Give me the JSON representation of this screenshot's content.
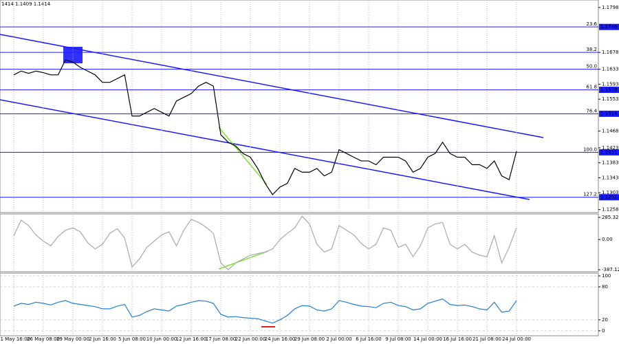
{
  "chart_data": [
    {
      "type": "line",
      "title": "1414 1.1409 1.1414",
      "color": "#000000",
      "grid": true,
      "categories": [
        "21 May 16:00",
        null,
        null,
        null,
        "26 May 08:00",
        null,
        null,
        null,
        "29 May 00:00",
        null,
        null,
        null,
        "2 Jun 16:00",
        null,
        null,
        null,
        "5 Jun 08:00",
        null,
        null,
        null,
        "10 Jun 00:00",
        null,
        null,
        null,
        "12 Jun 16:00",
        null,
        null,
        null,
        "17 Jun 08:00",
        null,
        null,
        null,
        "22 Jun 00:00",
        null,
        null,
        null,
        "24 Jun 16:00",
        null,
        null,
        null,
        "29 Jun 08:00",
        null,
        null,
        null,
        "2 Jul 00:00",
        null,
        null,
        null,
        "6 Jul 16:00",
        null,
        null,
        null,
        "9 Jul 08:00",
        null,
        null,
        null,
        "14 Jul 00:00",
        null,
        null,
        null,
        "16 Jul 16:00",
        null,
        null,
        null,
        "21 Jul 08:00",
        null,
        null,
        null,
        "24 Jul 00:00",
        null,
        null,
        null
      ],
      "values": [
        1.1618,
        1.1628,
        1.1622,
        1.1628,
        1.1624,
        1.1618,
        1.1618,
        1.1658,
        1.1652,
        1.1638,
        1.1628,
        1.1618,
        1.1598,
        1.1598,
        1.1608,
        1.1618,
        1.1508,
        1.1508,
        1.1518,
        1.1528,
        1.1518,
        1.1508,
        1.1548,
        1.1558,
        1.1568,
        1.1588,
        1.1598,
        1.1588,
        1.1458,
        1.1438,
        1.1428,
        1.1408,
        1.1398,
        1.1368,
        1.1328,
        1.1298,
        1.1318,
        1.1328,
        1.1368,
        1.1358,
        1.1358,
        1.1368,
        1.1348,
        1.1358,
        1.1418,
        1.1408,
        1.1398,
        1.1388,
        1.1388,
        1.1378,
        1.1398,
        1.1398,
        1.1398,
        1.1388,
        1.1358,
        1.1368,
        1.1398,
        1.1408,
        1.1438,
        1.1408,
        1.1398,
        1.1398,
        1.1378,
        1.1378,
        1.1368,
        1.1388,
        1.1348,
        1.1338,
        1.1414,
        null,
        null,
        null
      ],
      "ylim": [
        1.125,
        1.1818
      ],
      "yticks": [
        1.1798,
        1.1678,
        1.1633,
        1.1593,
        1.1553,
        1.1468,
        1.1423,
        1.1383,
        1.1343,
        1.1303,
        1.1258
      ],
      "level_color": "#1a1aff",
      "levels": [
        {
          "ratio": "23.6",
          "value": 1.1746,
          "highlight": true
        },
        {
          "ratio": "38.2",
          "value": 1.1678,
          "highlight": false
        },
        {
          "ratio": "50.0",
          "value": 1.1633,
          "highlight": false
        },
        {
          "ratio": "61.8",
          "value": 1.1578,
          "highlight": true
        },
        {
          "ratio": "76.4",
          "value": 1.1514,
          "highlight": true
        },
        {
          "ratio": "100.0",
          "value": 1.1411,
          "highlight": true
        },
        {
          "ratio": "127.2",
          "value": 1.1291,
          "highlight": true
        }
      ]
    },
    {
      "type": "line",
      "color": "#a9a9a9",
      "values": [
        50,
        250,
        180,
        60,
        -20,
        -80,
        40,
        120,
        150,
        100,
        -40,
        -120,
        -60,
        80,
        140,
        20,
        -350,
        -250,
        -100,
        -20,
        60,
        100,
        -80,
        120,
        260,
        220,
        160,
        80,
        -300,
        -387,
        -300,
        -250,
        -200,
        -180,
        -160,
        -120,
        0,
        80,
        150,
        300,
        200,
        -60,
        -160,
        -120,
        180,
        120,
        60,
        -50,
        -120,
        -60,
        150,
        120,
        -100,
        -60,
        -220,
        -80,
        150,
        200,
        220,
        -60,
        -120,
        -60,
        -160,
        -200,
        -220,
        50,
        -300,
        -100,
        150,
        null,
        null,
        null
      ],
      "ylim": [
        -413,
        329
      ],
      "yticks": [
        {
          "value": 285.322,
          "label": "285.322"
        },
        {
          "value": 0,
          "label": "0.00"
        },
        {
          "value": -387.129,
          "label": "-387.129"
        }
      ]
    },
    {
      "type": "line",
      "color": "#1e7fd8",
      "values": [
        45,
        50,
        48,
        52,
        50,
        47,
        52,
        55,
        50,
        48,
        46,
        44,
        40,
        40,
        45,
        48,
        25,
        28,
        35,
        40,
        38,
        36,
        45,
        48,
        52,
        55,
        54,
        50,
        30,
        25,
        26,
        24,
        23,
        22,
        18,
        14,
        20,
        28,
        40,
        46,
        45,
        38,
        36,
        40,
        55,
        52,
        48,
        45,
        44,
        42,
        50,
        52,
        46,
        44,
        38,
        40,
        50,
        54,
        58,
        48,
        46,
        47,
        44,
        40,
        38,
        52,
        34,
        36,
        55,
        null,
        null,
        null
      ],
      "ylim": [
        -9,
        105
      ],
      "yticks": [
        100,
        80,
        20,
        0
      ]
    }
  ]
}
